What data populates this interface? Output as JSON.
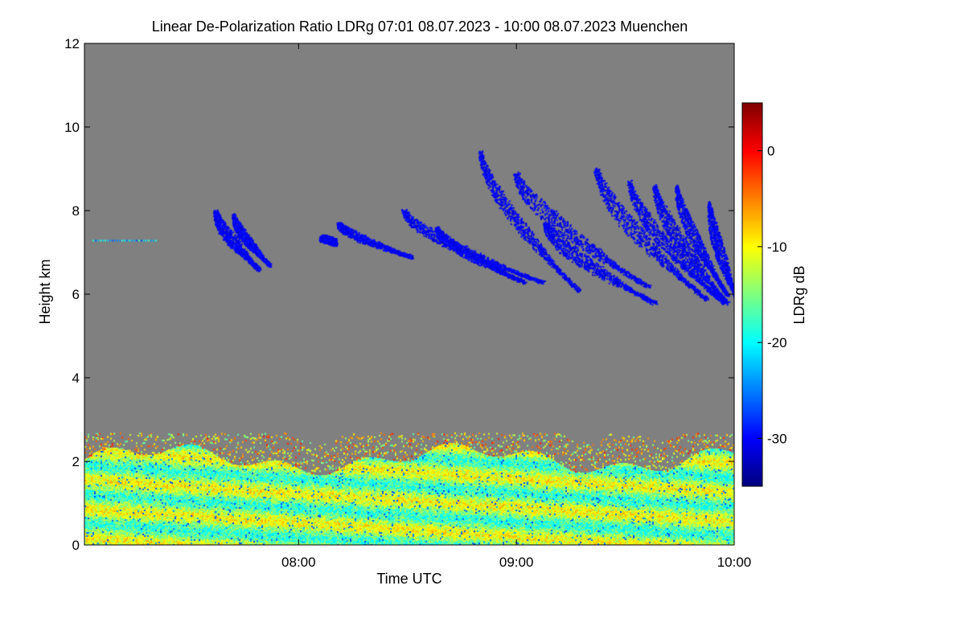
{
  "chart_data": {
    "type": "heatmap",
    "title": "Linear De-Polarization Ratio LDRg   07:01 08.07.2023 - 10:00 08.07.2023 Muenchen",
    "xlabel": "Time UTC",
    "ylabel": "Height km",
    "x_range": [
      "07:01",
      "10:00"
    ],
    "x_ticks": [
      "08:00",
      "09:00",
      "10:00"
    ],
    "ylim": [
      0,
      12
    ],
    "y_ticks": [
      "0",
      "2",
      "4",
      "6",
      "8",
      "10",
      "12"
    ],
    "colorbar": {
      "label": "LDRg dB",
      "range": [
        -35,
        5
      ],
      "ticks": [
        "0",
        "-10",
        "-20",
        "-30"
      ],
      "colormap": "jet"
    },
    "background_color": "#808080",
    "regions": {
      "boundary_layer": {
        "height_km": [
          0,
          2.5
        ],
        "ldr_db": [
          -20,
          -5
        ],
        "description_colors": [
          "cyan",
          "green",
          "yellow",
          "orange"
        ]
      },
      "cirrus_fallstreaks": {
        "height_km": [
          5.6,
          9.8
        ],
        "ldr_db": [
          -32,
          -28
        ],
        "time_start": "07:34",
        "time_end": "10:00"
      }
    },
    "grid": false
  }
}
